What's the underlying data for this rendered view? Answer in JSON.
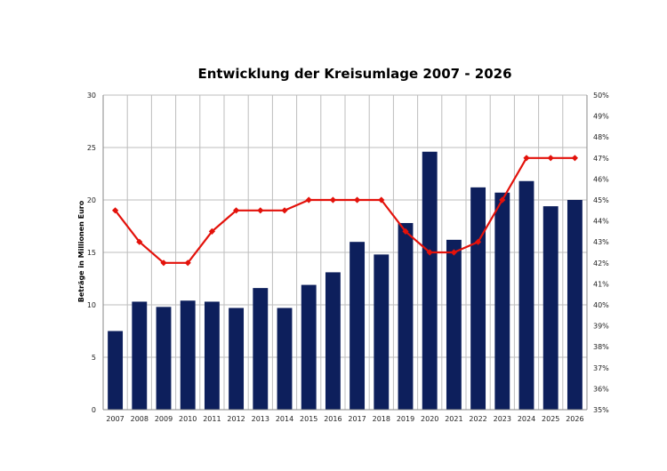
{
  "chart_data": {
    "type": "bar",
    "title": "Entwicklung der Kreisumlage 2007 - 2026",
    "ylabel": "Beträge in Millionen Euro",
    "y2label": "",
    "categories": [
      "2007",
      "2008",
      "2009",
      "2010",
      "2011",
      "2012",
      "2013",
      "2014",
      "2015",
      "2016",
      "2017",
      "2018",
      "2019",
      "2020",
      "2021",
      "2022",
      "2023",
      "2024",
      "2025",
      "2026"
    ],
    "ylim": [
      0,
      30
    ],
    "yticks": [
      0,
      5,
      10,
      15,
      20,
      25,
      30
    ],
    "y2lim": [
      35,
      50
    ],
    "y2ticks": [
      "35%",
      "36%",
      "37%",
      "38%",
      "39%",
      "40%",
      "41%",
      "42%",
      "43%",
      "44%",
      "45%",
      "46%",
      "47%",
      "48%",
      "49%",
      "50%"
    ],
    "grid": true,
    "series": [
      {
        "type": "bar",
        "axis": "left",
        "color": "#0d1f5c",
        "values": [
          7.5,
          10.3,
          9.8,
          10.4,
          10.3,
          9.7,
          11.6,
          9.7,
          11.9,
          13.1,
          16.0,
          14.8,
          17.8,
          24.6,
          16.2,
          21.2,
          20.7,
          21.8,
          19.4,
          20.0
        ]
      },
      {
        "type": "line",
        "axis": "right",
        "color": "#e3120b",
        "values": [
          44.5,
          43.0,
          42.0,
          42.0,
          43.5,
          44.5,
          44.5,
          44.5,
          45.0,
          45.0,
          45.0,
          45.0,
          43.5,
          42.5,
          42.5,
          43.0,
          45.0,
          47.0,
          47.0,
          47.0
        ]
      }
    ]
  }
}
